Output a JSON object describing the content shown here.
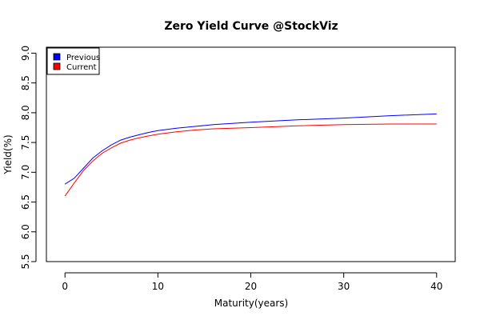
{
  "chart_data": {
    "type": "line",
    "title": "Zero Yield Curve @StockViz",
    "xlabel": "Maturity(years)",
    "ylabel": "Yield(%)",
    "xlim": [
      -2,
      42
    ],
    "ylim": [
      5.5,
      9.1
    ],
    "xticks": [
      "0",
      "10",
      "20",
      "30",
      "40"
    ],
    "yticks": [
      "5.5",
      "6.0",
      "6.5",
      "7.0",
      "7.5",
      "8.0",
      "8.5",
      "9.0"
    ],
    "legend_position": "top-left",
    "grid": false,
    "x": [
      0,
      1,
      2,
      3,
      4,
      5,
      6,
      7,
      8,
      9,
      10,
      12,
      14,
      16,
      18,
      20,
      25,
      30,
      35,
      40
    ],
    "series": [
      {
        "name": "Previous",
        "color": "#0000ff",
        "values": [
          6.8,
          6.9,
          7.07,
          7.24,
          7.36,
          7.46,
          7.54,
          7.59,
          7.63,
          7.67,
          7.7,
          7.74,
          7.77,
          7.8,
          7.82,
          7.84,
          7.88,
          7.91,
          7.95,
          7.98
        ]
      },
      {
        "name": "Current",
        "color": "#ff0000",
        "values": [
          6.6,
          6.82,
          7.03,
          7.19,
          7.32,
          7.41,
          7.49,
          7.54,
          7.58,
          7.61,
          7.64,
          7.68,
          7.71,
          7.73,
          7.74,
          7.75,
          7.78,
          7.8,
          7.81,
          7.81
        ]
      }
    ]
  }
}
